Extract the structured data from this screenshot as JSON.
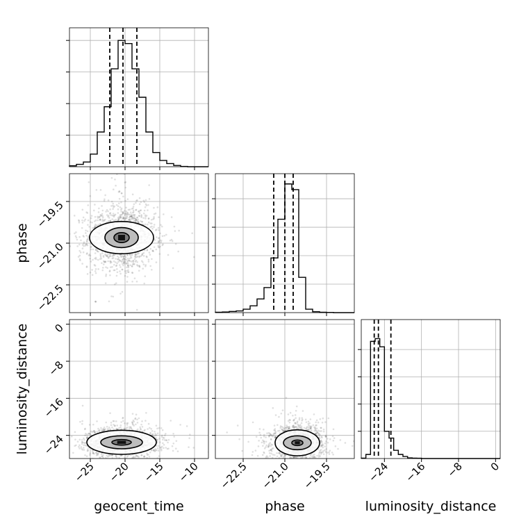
{
  "chart_data": {
    "type": "corner",
    "title": "",
    "parameters": [
      "geocent_time",
      "phase",
      "luminosity_distance"
    ],
    "grid": true,
    "quantile_lines": "dashed",
    "histograms": [
      {
        "name": "geocent_time",
        "bin_edges": [
          -28,
          -27,
          -26,
          -25,
          -24,
          -23,
          -22,
          -21,
          -20,
          -19,
          -18,
          -17,
          -16,
          -15,
          -14,
          -13,
          -12,
          -11,
          -10,
          -9,
          -8
        ],
        "counts": [
          0.6,
          1.5,
          3,
          8,
          22,
          38,
          62,
          80,
          78,
          62,
          44,
          22,
          9,
          4,
          2,
          0.8,
          0.2,
          0,
          0,
          0
        ],
        "quantiles": [
          -22.2,
          -20.3,
          -18.3
        ],
        "xlim": [
          -28,
          -8
        ],
        "ylim": [
          0,
          88
        ],
        "yticks": [
          20,
          40,
          60,
          80
        ]
      },
      {
        "name": "phase",
        "bin_edges": [
          -23.5,
          -23.25,
          -23,
          -22.75,
          -22.5,
          -22.25,
          -22,
          -21.75,
          -21.5,
          -21.25,
          -21,
          -20.75,
          -20.5,
          -20.25,
          -20,
          -19.75,
          -19.5,
          -19.25,
          -19,
          -18.75,
          -18.5
        ],
        "counts": [
          0.3,
          0.6,
          1,
          1.5,
          3,
          6,
          12,
          22,
          48,
          82,
          113,
          108,
          31,
          3,
          0.8,
          0.3,
          0.2,
          0,
          0,
          0
        ],
        "quantiles": [
          -21.4,
          -21.0,
          -20.7
        ],
        "xlim": [
          -23.5,
          -18.5
        ],
        "ylim": [
          0,
          122
        ],
        "yticks": [
          25,
          50,
          75,
          100
        ]
      },
      {
        "name": "luminosity_distance",
        "bin_edges": [
          -29,
          -28,
          -27,
          -26,
          -25,
          -24,
          -23,
          -22,
          -21,
          -20,
          -19,
          -18,
          -17,
          -16,
          -15,
          -14,
          -13,
          -12,
          -11,
          -10,
          -9,
          -8,
          -7,
          -6,
          -5,
          -4,
          -3,
          -2,
          -1,
          0,
          1
        ],
        "counts": [
          0.3,
          3,
          86,
          88,
          82,
          20,
          15,
          6,
          3,
          1.5,
          0.5,
          0.3,
          0.2,
          0,
          0,
          0,
          0,
          0,
          0,
          0,
          0,
          0,
          0,
          0,
          0,
          0,
          0,
          0,
          0,
          0
        ],
        "quantiles": [
          -26.2,
          -25.3,
          -22.6
        ],
        "xlim": [
          -29,
          1
        ],
        "ylim": [
          0,
          102
        ],
        "yticks": [
          20,
          40,
          60,
          80
        ]
      }
    ],
    "scatter_panels": [
      {
        "x_param": "geocent_time",
        "y_param": "phase",
        "x_center": -20.5,
        "y_center": -20.8,
        "x_spread": 2.4,
        "y_spread": 0.55,
        "xlim": [
          -28,
          -8
        ],
        "ylim": [
          -23.5,
          -18.5
        ],
        "contours": [
          {
            "level": "inner",
            "x_radius": 1.1,
            "y_radius": 0.18
          },
          {
            "level": "middle",
            "x_radius": 2.4,
            "y_radius": 0.36
          },
          {
            "level": "outer",
            "x_radius": 4.6,
            "y_radius": 0.58
          }
        ]
      },
      {
        "x_param": "geocent_time",
        "y_param": "luminosity_distance",
        "x_center": -20.5,
        "y_center": -25.5,
        "x_spread": 2.6,
        "y_spread": 1.6,
        "xlim": [
          -28,
          -8
        ],
        "ylim": [
          -29,
          1
        ],
        "contours": [
          {
            "level": "inner",
            "x_radius": 1.4,
            "y_radius": 0.6
          },
          {
            "level": "middle",
            "x_radius": 3.0,
            "y_radius": 1.4
          },
          {
            "level": "outer",
            "x_radius": 5.0,
            "y_radius": 2.6
          }
        ]
      },
      {
        "x_param": "phase",
        "y_param": "luminosity_distance",
        "x_center": -20.55,
        "y_center": -25.6,
        "x_spread": 0.45,
        "y_spread": 1.8,
        "xlim": [
          -23.5,
          -18.5
        ],
        "ylim": [
          -29,
          1
        ],
        "contours": [
          {
            "level": "inner",
            "x_radius": 0.2,
            "y_radius": 0.6
          },
          {
            "level": "middle",
            "x_radius": 0.5,
            "y_radius": 1.5
          },
          {
            "level": "outer",
            "x_radius": 0.8,
            "y_radius": 2.8
          }
        ]
      }
    ],
    "x_tick_labels": {
      "geocent_time": [
        "−25",
        "−20",
        "−15",
        "−10"
      ],
      "phase": [
        "−22.5",
        "−21.0",
        "−19.5"
      ],
      "luminosity_distance": [
        "−24",
        "−16",
        "−8",
        "0"
      ]
    },
    "x_tick_values": {
      "geocent_time": [
        -25,
        -20,
        -15,
        -10
      ],
      "phase": [
        -22.5,
        -21.0,
        -19.5
      ],
      "luminosity_distance": [
        -24,
        -16,
        -8,
        0
      ]
    },
    "y_tick_labels": {
      "phase": [
        "−19.5",
        "−21.0",
        "−22.5"
      ],
      "luminosity_distance": [
        "0",
        "−8",
        "−16",
        "−24"
      ]
    },
    "y_tick_values": {
      "phase": [
        -19.5,
        -21.0,
        -22.5
      ],
      "luminosity_distance": [
        0,
        -8,
        -16,
        -24
      ]
    },
    "xlabels": [
      "geocent_time",
      "phase",
      "luminosity_distance"
    ],
    "ylabels": [
      "phase",
      "luminosity_distance"
    ],
    "colors": {
      "line": "#000000",
      "grid": "#b0b0b0",
      "scatter": "#555555",
      "density_light": "#bdbdbd",
      "density_mid": "#7a7a7a",
      "density_dark": "#111111"
    }
  }
}
